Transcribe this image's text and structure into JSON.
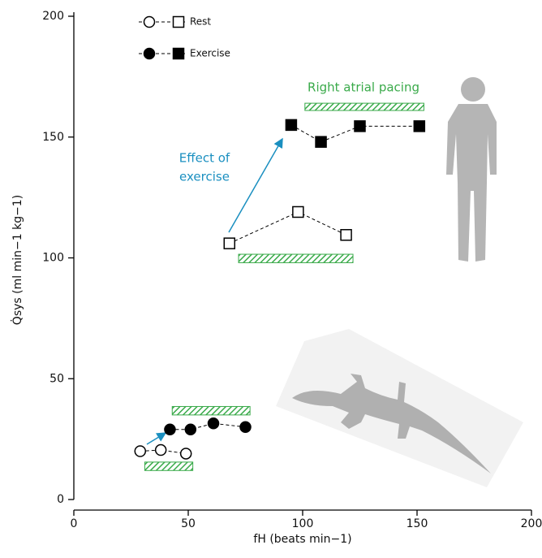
{
  "chart_data": {
    "type": "line",
    "x_label": "fH (beats min−1)",
    "y_label": "Q̇sys (ml min−1 kg−1)",
    "xlim": [
      0,
      200
    ],
    "xticks": [
      0,
      50,
      100,
      150,
      200
    ],
    "ylim": [
      0,
      200
    ],
    "yticks": [
      0,
      50,
      100,
      150,
      200
    ],
    "series": [
      {
        "name": "Rest",
        "filled": false,
        "color": "#000000",
        "segments": [
          {
            "marker": "circle",
            "x": [
              29,
              38,
              49
            ],
            "values": [
              20,
              20.5,
              19
            ]
          },
          {
            "marker": "square",
            "x": [
              68,
              98,
              119
            ],
            "values": [
              106,
              119,
              109.5
            ]
          }
        ]
      },
      {
        "name": "Exercise",
        "filled": true,
        "color": "#000000",
        "segments": [
          {
            "marker": "circle",
            "x": [
              42,
              51,
              61,
              75
            ],
            "values": [
              29,
              29,
              31.5,
              30
            ]
          },
          {
            "marker": "square",
            "x": [
              95,
              108,
              125,
              151
            ],
            "values": [
              155,
              148,
              154.5,
              154.5
            ]
          }
        ]
      }
    ],
    "pacing_color": "#3aaa4a",
    "pacing_bars": [
      {
        "x": [
          101,
          153
        ],
        "y": [
          161,
          164
        ]
      },
      {
        "x": [
          72,
          122
        ],
        "y": [
          98,
          101.5
        ]
      },
      {
        "x": [
          43,
          77
        ],
        "y": [
          35,
          38.5
        ]
      },
      {
        "x": [
          31,
          52
        ],
        "y": [
          12,
          15.5
        ]
      }
    ],
    "annotations": {
      "pacing": "Right atrial pacing",
      "effect": [
        "Effect of",
        "exercise"
      ]
    },
    "annotation_color": "#1a8fc0"
  }
}
